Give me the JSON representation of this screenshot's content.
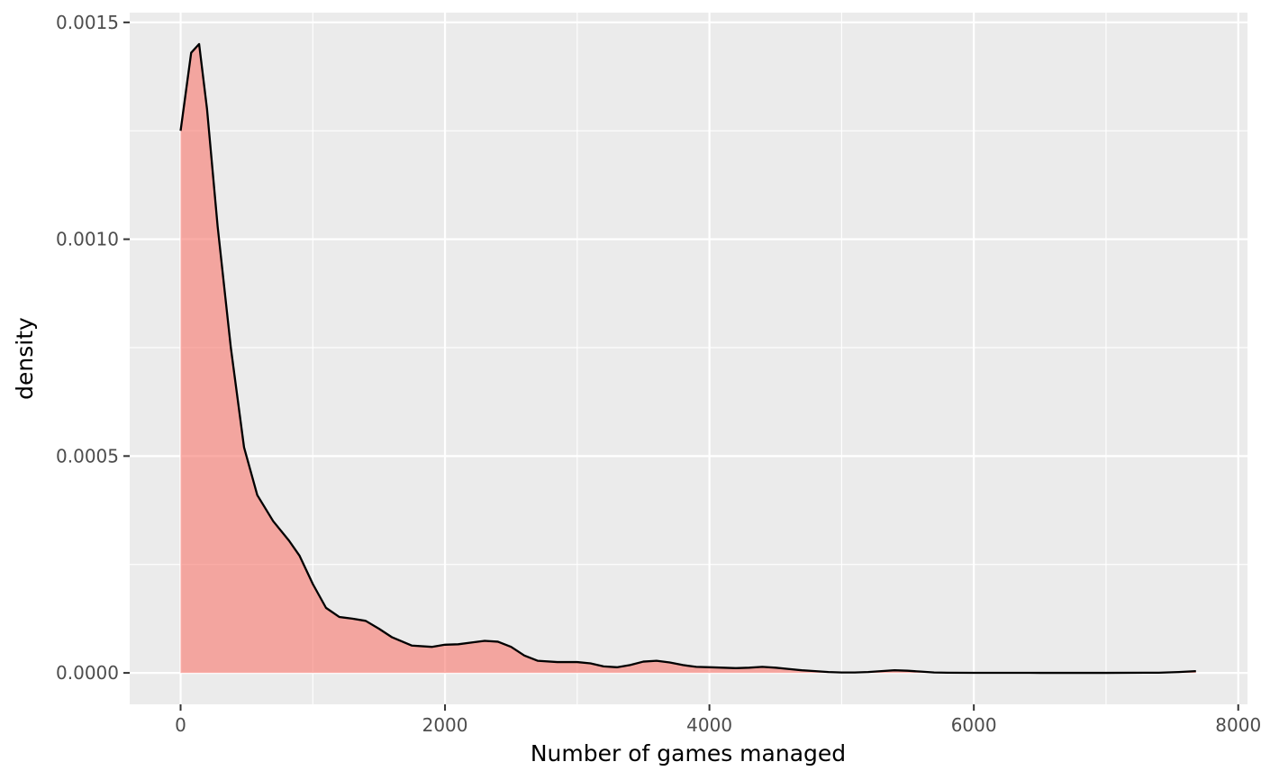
{
  "chart_data": {
    "type": "area",
    "xlabel": "Number of games managed",
    "ylabel": "density",
    "xlim": [
      -385,
      8070
    ],
    "ylim": [
      -7.25e-05,
      0.0015225
    ],
    "x_ticks": [
      0,
      2000,
      4000,
      6000,
      8000
    ],
    "x_tick_labels": [
      "0",
      "2000",
      "4000",
      "6000",
      "8000"
    ],
    "y_ticks": [
      0,
      0.0005,
      0.001,
      0.0015
    ],
    "y_tick_labels": [
      "0.0000",
      "0.0005",
      "0.0010",
      "0.0015"
    ],
    "grid": true,
    "colors": {
      "panel_background": "#ebebeb",
      "grid_major": "#ffffff",
      "fill": "#f8766d",
      "line": "#000000"
    },
    "series": [
      {
        "x": [
          0,
          80,
          140,
          200,
          280,
          380,
          480,
          580,
          700,
          820,
          900,
          1000,
          1100,
          1200,
          1300,
          1400,
          1500,
          1600,
          1750,
          1900,
          2000,
          2100,
          2200,
          2300,
          2400,
          2500,
          2600,
          2700,
          2850,
          3000,
          3100,
          3200,
          3300,
          3400,
          3500,
          3600,
          3700,
          3800,
          3900,
          4000,
          4100,
          4200,
          4300,
          4400,
          4500,
          4600,
          4700,
          4800,
          4900,
          5000,
          5100,
          5200,
          5300,
          5400,
          5500,
          5600,
          5700,
          5800,
          6000,
          6500,
          7000,
          7400,
          7550,
          7680
        ],
        "y": [
          0.00125,
          0.00143,
          0.00145,
          0.0013,
          0.00103,
          0.00075,
          0.00052,
          0.00041,
          0.00035,
          0.000305,
          0.00027,
          0.000205,
          0.00015,
          0.000129,
          0.000125,
          0.00012,
          0.000102,
          8.2e-05,
          6.3e-05,
          6e-05,
          6.5e-05,
          6.6e-05,
          7e-05,
          7.4e-05,
          7.2e-05,
          6e-05,
          4e-05,
          2.8e-05,
          2.5e-05,
          2.5e-05,
          2.2e-05,
          1.5e-05,
          1.3e-05,
          1.8e-05,
          2.6e-05,
          2.8e-05,
          2.4e-05,
          1.8e-05,
          1.4e-05,
          1.3e-05,
          1.2e-05,
          1.1e-05,
          1.2e-05,
          1.4e-05,
          1.2e-05,
          9e-06,
          6e-06,
          4e-06,
          2e-06,
          1e-06,
          1e-06,
          2e-06,
          4e-06,
          6e-06,
          5e-06,
          3e-06,
          1e-06,
          5e-07,
          2e-07,
          1e-07,
          1e-07,
          5e-07,
          2e-06,
          4e-06
        ]
      }
    ]
  }
}
